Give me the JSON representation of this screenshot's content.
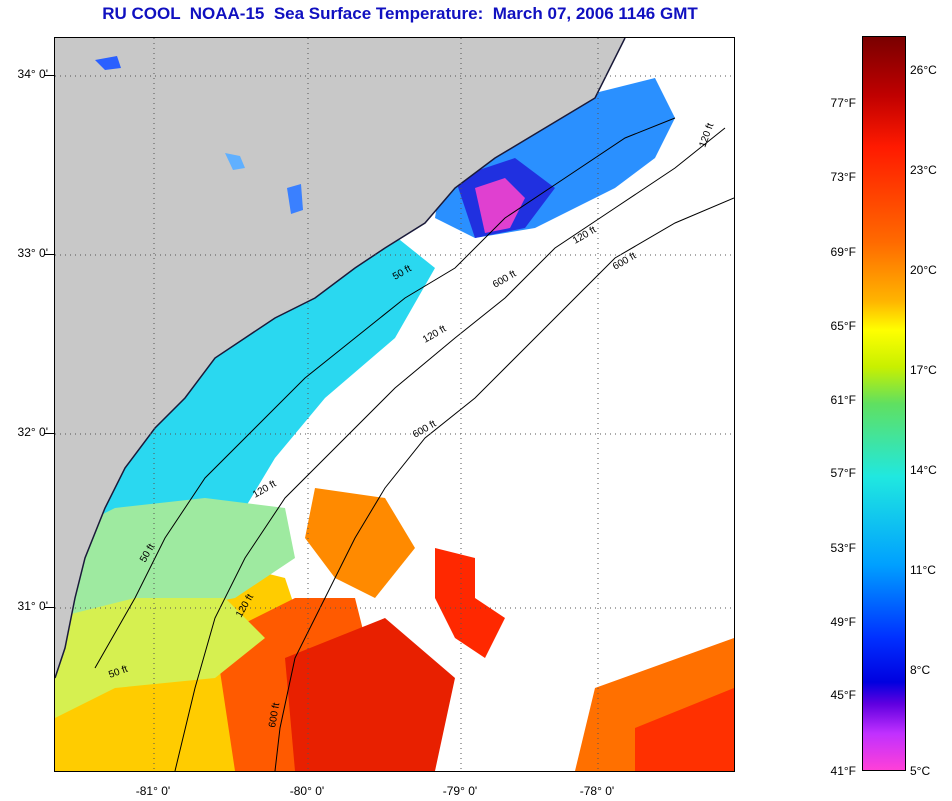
{
  "title": "RU COOL  NOAA-15  Sea Surface Temperature:  March 07, 2006 1146 GMT",
  "axes": {
    "lat_labels": [
      "34° 0'",
      "33° 0'",
      "32° 0'",
      "31° 0'"
    ],
    "lon_labels": [
      "-81° 0'",
      "-80° 0'",
      "-79° 0'",
      "-78° 0'"
    ]
  },
  "contours": {
    "labels": [
      "50 ft",
      "120 ft",
      "600 ft",
      "50 ft",
      "120 ft",
      "600 ft",
      "50 ft",
      "120 ft",
      "600 ft",
      "120 ft",
      "600 ft",
      "120 ft"
    ]
  },
  "colorbar": {
    "fahrenheit": [
      "77°F",
      "73°F",
      "69°F",
      "65°F",
      "61°F",
      "57°F",
      "53°F",
      "49°F",
      "45°F",
      "41°F"
    ],
    "celsius": [
      "26°C",
      "23°C",
      "20°C",
      "17°C",
      "14°C",
      "11°C",
      "8°C",
      "5°C"
    ]
  },
  "colors": {
    "land": "#c8c8c8",
    "cloud": "#ffffff",
    "cold": "#3a7aff",
    "cool": "#2ad8f0",
    "mild": "#a0f060",
    "warm": "#ffcc00",
    "hot": "#ff3a00",
    "title": "#1010c0"
  }
}
